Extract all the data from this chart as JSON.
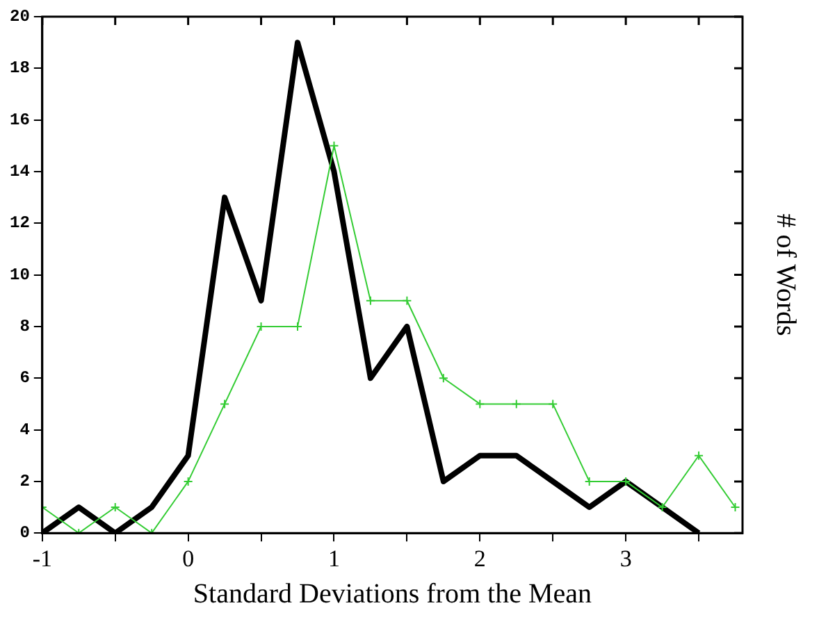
{
  "chart_data": {
    "type": "line",
    "xlabel": "Standard Deviations from the Mean",
    "ylabel": "# of Words",
    "xlim": [
      -1,
      3.8
    ],
    "xticks": [
      -1,
      {
        "value": -0.5,
        "label": null
      },
      0,
      {
        "value": 0.5,
        "label": null
      },
      1,
      {
        "value": 1.5,
        "label": null
      },
      2,
      {
        "value": 2.5,
        "label": null
      },
      3,
      {
        "value": 3.5,
        "label": null
      }
    ],
    "ylim": [
      0,
      20
    ],
    "yticks": [
      0,
      2,
      4,
      6,
      8,
      10,
      12,
      14,
      16,
      18,
      20
    ],
    "grid": false,
    "legend": false,
    "series": [
      {
        "color": "#000000",
        "x": [
          -1,
          -0.75,
          -0.5,
          -0.25,
          0,
          0.25,
          0.5,
          0.75,
          1,
          1.25,
          1.5,
          1.75,
          2,
          2.25,
          2.5,
          2.75,
          3,
          3.25,
          3.5
        ],
        "values": [
          0,
          1,
          0,
          1,
          3,
          13,
          9,
          19,
          14,
          6,
          8,
          2,
          3,
          3,
          2,
          1,
          2,
          1,
          0
        ],
        "marker": "none"
      },
      {
        "color": "#33cc33",
        "x": [
          -1,
          -0.75,
          -0.5,
          -0.25,
          0,
          0.25,
          0.5,
          0.75,
          1,
          1.25,
          1.5,
          1.75,
          2,
          2.25,
          2.5,
          2.75,
          3,
          3.25,
          3.5,
          3.75
        ],
        "values": [
          1,
          0,
          1,
          0,
          2,
          5,
          8,
          8,
          15,
          9,
          9,
          6,
          5,
          5,
          5,
          2,
          2,
          1,
          3,
          1
        ],
        "marker": "cross"
      }
    ]
  }
}
